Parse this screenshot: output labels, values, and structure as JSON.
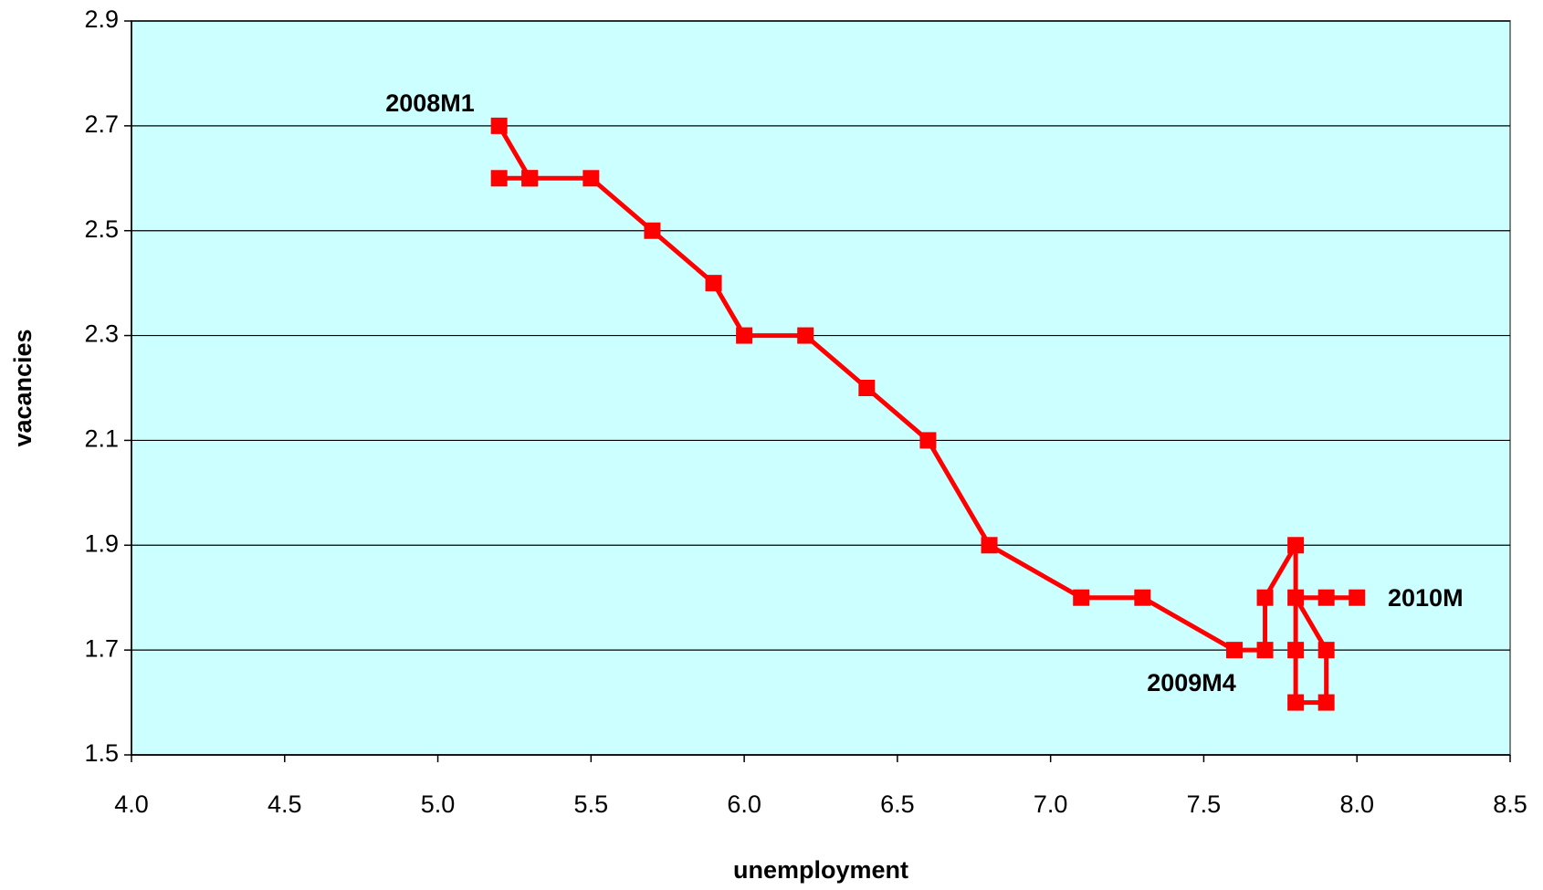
{
  "chart_data": {
    "type": "line",
    "xlabel": "unemployment",
    "ylabel": "vacancies",
    "annotations": [
      "2008M1",
      "2009M4",
      "2010M"
    ],
    "series": [
      {
        "name": "vacancies",
        "color": "#ff0000",
        "x": [
          5.2,
          5.3,
          5.2,
          5.3,
          5.5,
          5.7,
          5.9,
          6.0,
          6.2,
          6.4,
          6.6,
          6.8,
          7.1,
          7.3,
          7.6,
          7.7,
          7.7,
          7.8,
          7.8,
          7.8,
          7.9,
          7.9,
          7.8,
          7.9,
          8.0
        ],
        "values": [
          2.7,
          2.6,
          2.6,
          2.6,
          2.6,
          2.5,
          2.4,
          2.3,
          2.3,
          2.2,
          2.1,
          1.9,
          1.8,
          1.8,
          1.7,
          1.7,
          1.8,
          1.9,
          1.7,
          1.6,
          1.6,
          1.7,
          1.8,
          1.8,
          1.8
        ]
      }
    ],
    "xlim": [
      4.0,
      8.5
    ],
    "xticks": [
      {
        "value": 4.0,
        "label": "4.0"
      },
      4.5,
      {
        "value": 5.0,
        "label": "5.0"
      },
      5.5,
      {
        "value": 6.0,
        "label": "6.0"
      },
      6.5,
      {
        "value": 7.0,
        "label": "7.0"
      },
      7.5,
      {
        "value": 8.0,
        "label": "8.0"
      },
      8.5
    ],
    "ylim": [
      1.5,
      2.9
    ],
    "yticks": [
      1.5,
      1.7,
      1.9,
      2.1,
      2.3,
      2.5,
      2.7,
      2.9
    ],
    "grid": true,
    "background": "#ccffff"
  }
}
